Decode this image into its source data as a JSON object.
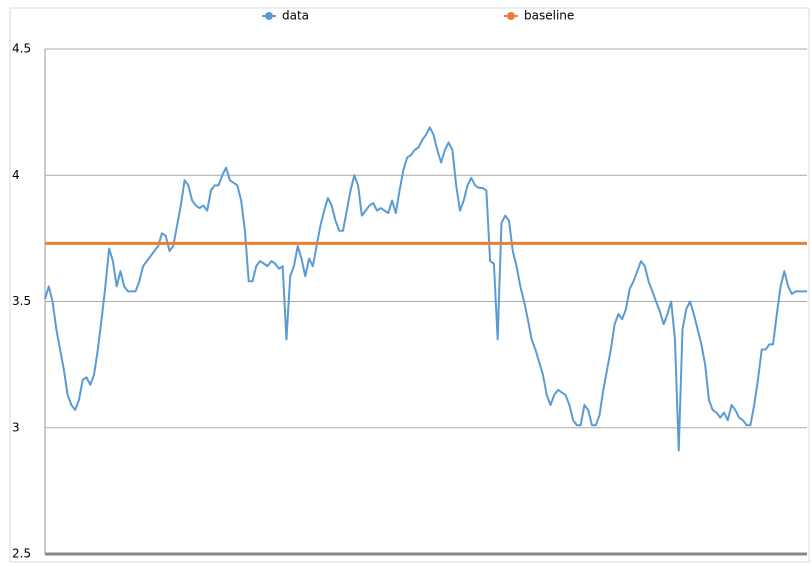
{
  "chart_data": {
    "type": "line",
    "series": [
      {
        "name": "data",
        "color": "#5b9bd5",
        "values": [
          3.51,
          3.56,
          3.5,
          3.39,
          3.31,
          3.23,
          3.13,
          3.09,
          3.07,
          3.11,
          3.19,
          3.2,
          3.17,
          3.21,
          3.31,
          3.43,
          3.56,
          3.71,
          3.66,
          3.56,
          3.62,
          3.56,
          3.54,
          3.54,
          3.54,
          3.58,
          3.64,
          3.66,
          3.68,
          3.7,
          3.72,
          3.77,
          3.76,
          3.7,
          3.72,
          3.8,
          3.88,
          3.98,
          3.96,
          3.9,
          3.88,
          3.87,
          3.88,
          3.86,
          3.94,
          3.96,
          3.96,
          4.0,
          4.03,
          3.98,
          3.97,
          3.96,
          3.9,
          3.78,
          3.58,
          3.58,
          3.64,
          3.66,
          3.65,
          3.64,
          3.66,
          3.65,
          3.63,
          3.64,
          3.35,
          3.6,
          3.64,
          3.72,
          3.67,
          3.6,
          3.67,
          3.64,
          3.72,
          3.8,
          3.86,
          3.91,
          3.88,
          3.82,
          3.78,
          3.78,
          3.86,
          3.94,
          4.0,
          3.96,
          3.84,
          3.86,
          3.88,
          3.89,
          3.86,
          3.87,
          3.86,
          3.85,
          3.9,
          3.85,
          3.94,
          4.02,
          4.07,
          4.08,
          4.1,
          4.11,
          4.14,
          4.16,
          4.19,
          4.16,
          4.1,
          4.05,
          4.1,
          4.13,
          4.1,
          3.96,
          3.86,
          3.9,
          3.96,
          3.99,
          3.96,
          3.95,
          3.95,
          3.94,
          3.66,
          3.65,
          3.35,
          3.81,
          3.84,
          3.82,
          3.7,
          3.64,
          3.56,
          3.5,
          3.43,
          3.35,
          3.31,
          3.26,
          3.21,
          3.13,
          3.09,
          3.13,
          3.15,
          3.14,
          3.13,
          3.09,
          3.03,
          3.01,
          3.01,
          3.09,
          3.07,
          3.01,
          3.01,
          3.05,
          3.15,
          3.23,
          3.31,
          3.41,
          3.45,
          3.43,
          3.47,
          3.55,
          3.58,
          3.62,
          3.66,
          3.64,
          3.58,
          3.54,
          3.5,
          3.46,
          3.41,
          3.45,
          3.5,
          3.35,
          2.91,
          3.39,
          3.47,
          3.5,
          3.45,
          3.39,
          3.33,
          3.25,
          3.11,
          3.07,
          3.06,
          3.04,
          3.06,
          3.03,
          3.09,
          3.07,
          3.04,
          3.03,
          3.01,
          3.01,
          3.09,
          3.19,
          3.31,
          3.31,
          3.33,
          3.33,
          3.45,
          3.56,
          3.62,
          3.56,
          3.53,
          3.54,
          3.54,
          3.54,
          3.54
        ]
      },
      {
        "name": "baseline",
        "color": "#ed7d31",
        "value": 3.73
      }
    ],
    "ylim": [
      2.5,
      4.5
    ],
    "yticks": [
      2.5,
      3,
      3.5,
      4,
      4.5
    ],
    "grid": true
  }
}
